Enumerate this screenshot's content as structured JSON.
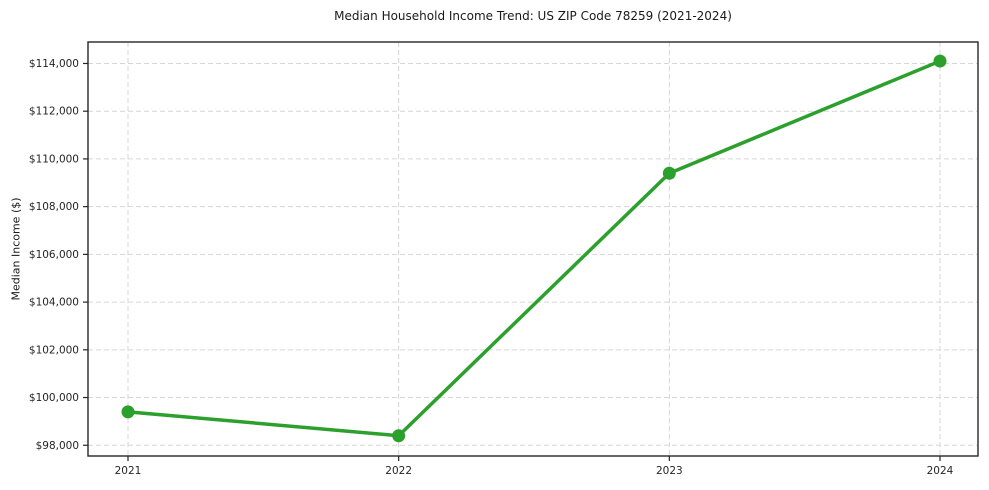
{
  "chart_data": {
    "type": "line",
    "title": "Median Household Income Trend: US ZIP Code 78259 (2021-2024)",
    "xlabel": "",
    "ylabel": "Median Income ($)",
    "categories": [
      "2021",
      "2022",
      "2023",
      "2024"
    ],
    "values": [
      99400,
      98400,
      109400,
      114100
    ],
    "yticks": [
      98000,
      100000,
      102000,
      104000,
      106000,
      108000,
      110000,
      112000,
      114000
    ],
    "ytick_labels": [
      "$98,000",
      "$100,000",
      "$102,000",
      "$104,000",
      "$106,000",
      "$108,000",
      "$110,000",
      "$112,000",
      "$114,000"
    ],
    "ylim": [
      97550,
      114900
    ],
    "grid": true,
    "grid_line_style": "dashed",
    "legend_position": "none",
    "marker": "circle",
    "colors": {
      "line": "#2ca02c",
      "marker": "#2ca02c",
      "grid": "#d6d6d6",
      "axis": "#262626",
      "text": "#262626",
      "background": "#ffffff"
    }
  }
}
